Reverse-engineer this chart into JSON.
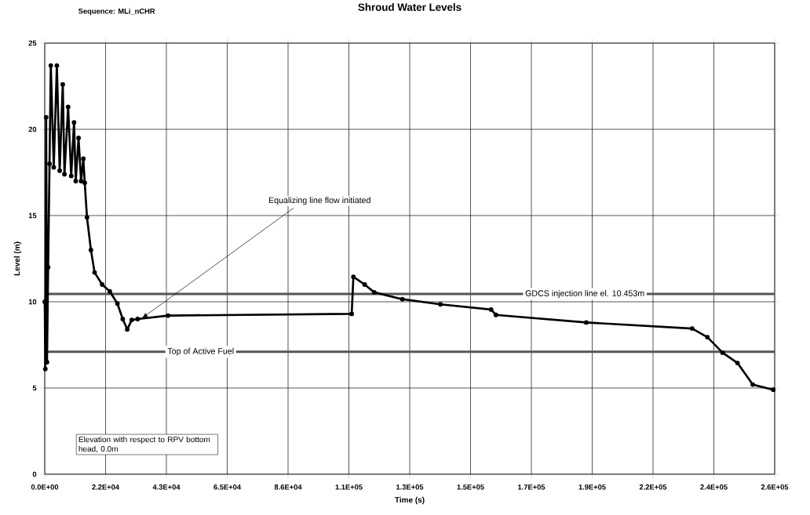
{
  "chart_data": {
    "type": "line",
    "title": "Shroud Water Levels",
    "subtitle": "Sequence: MLi_nCHR",
    "xlabel": "Time (s)",
    "ylabel": "Level (m)",
    "xlim": [
      0,
      259200
    ],
    "ylim": [
      0,
      25
    ],
    "xticks": [
      {
        "value": 0,
        "label": "0.0E+00"
      },
      {
        "value": 21600,
        "label": "2.2E+04"
      },
      {
        "value": 43200,
        "label": "4.3E+04"
      },
      {
        "value": 64800,
        "label": "6.5E+04"
      },
      {
        "value": 86400,
        "label": "8.6E+04"
      },
      {
        "value": 108000,
        "label": "1.1E+05"
      },
      {
        "value": 129600,
        "label": "1.3E+05"
      },
      {
        "value": 151200,
        "label": "1.5E+05"
      },
      {
        "value": 172800,
        "label": "1.7E+05"
      },
      {
        "value": 194400,
        "label": "1.9E+05"
      },
      {
        "value": 216000,
        "label": "2.2E+05"
      },
      {
        "value": 237600,
        "label": "2.4E+05"
      },
      {
        "value": 259200,
        "label": "2.6E+05"
      }
    ],
    "yticks": [
      0,
      5,
      10,
      15,
      20,
      25
    ],
    "grid": true,
    "marker": "circle",
    "line_style": "solid",
    "series": [
      {
        "color": "#000000",
        "x": [
          0,
          200,
          500,
          800,
          1200,
          1700,
          2150,
          3200,
          4300,
          5300,
          6400,
          7000,
          8300,
          9400,
          10400,
          11000,
          12000,
          12900,
          13700,
          14200,
          15000,
          16400,
          17700,
          20400,
          23100,
          25800,
          27700,
          29300,
          30900,
          33000,
          43800,
          109000,
          109600,
          113600,
          117000,
          127000,
          140500,
          158500,
          160200,
          192300,
          229900,
          235300,
          240700,
          246000,
          251400,
          258700
        ],
        "values": [
          10,
          6.1,
          20.7,
          6.5,
          12,
          18,
          23.7,
          17.8,
          23.7,
          17.6,
          22.6,
          17.4,
          21.3,
          17.3,
          20.4,
          17.0,
          19.5,
          17.0,
          18.3,
          16.9,
          14.9,
          13.0,
          11.7,
          11.0,
          10.6,
          9.9,
          9.0,
          8.4,
          8.95,
          9.0,
          9.2,
          9.3,
          11.45,
          11.0,
          10.55,
          10.15,
          9.85,
          9.55,
          9.24,
          8.8,
          8.45,
          7.95,
          7.05,
          6.45,
          5.2,
          4.9
        ]
      }
    ],
    "ref_lines": [
      {
        "axis": "y",
        "value": 10.453,
        "label": "GDCS injection line el. 10.453m",
        "color": "#555555"
      },
      {
        "axis": "y",
        "value": 7.1,
        "label": "Top of Active Fuel",
        "color": "#555555"
      }
    ],
    "annotations": [
      {
        "text": "Equalizing line flow initiated",
        "x": 34400,
        "y": 9.03
      },
      "Elevation with respect to RPV bottom head, 0.0m"
    ]
  }
}
